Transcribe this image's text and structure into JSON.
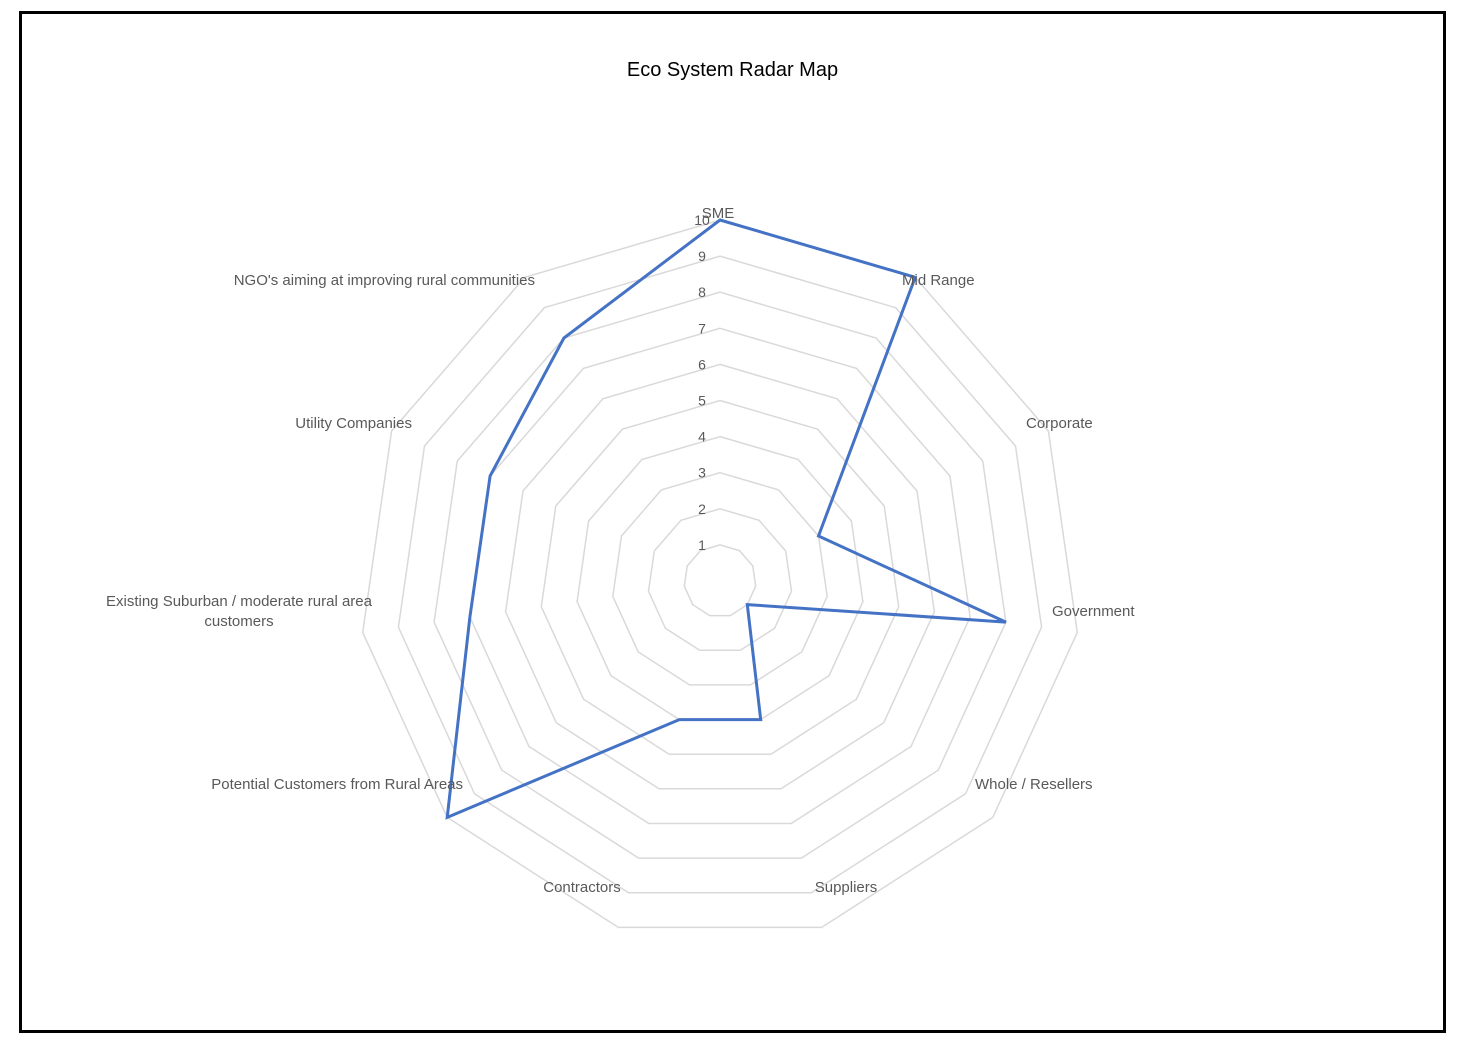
{
  "chart_data": {
    "type": "radar",
    "title": "Eco System Radar Map",
    "categories": [
      "SME",
      "Mid Range",
      "Corporate",
      "Government",
      "Whole / Resellers",
      "Suppliers",
      "Contractors",
      "Potential Customers from Rural Areas",
      "Existing Suburban / moderate rural area customers",
      "Utility Companies",
      "NGO's aiming at improving rural communities"
    ],
    "series": [
      {
        "values": [
          10,
          10,
          3,
          8,
          1,
          4,
          4,
          10,
          7,
          7,
          8
        ]
      }
    ],
    "rlim": [
      0,
      10
    ],
    "ticks": [
      "1",
      "2",
      "3",
      "4",
      "5",
      "6",
      "7",
      "8",
      "9",
      "10"
    ],
    "grid": true,
    "legend": "none"
  },
  "colors": {
    "series": "#4472C4",
    "grid": "#D9D9D9",
    "label": "#595959",
    "frame": "#000000"
  }
}
